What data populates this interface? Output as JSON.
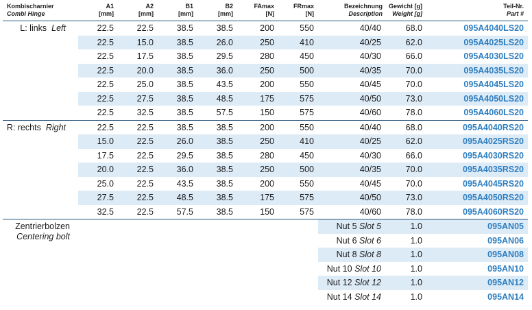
{
  "header": {
    "group_de": "Kombischarnier",
    "group_en": "Combi Hinge",
    "a1": "A1",
    "a1_unit": "[mm]",
    "a2": "A2",
    "a2_unit": "[mm]",
    "b1": "B1",
    "b1_unit": "[mm]",
    "b2": "B2",
    "b2_unit": "[mm]",
    "famax": "FAmax",
    "famax_unit": "[N]",
    "frmax": "FRmax",
    "frmax_unit": "[N]",
    "desc_de": "Bezeichnung",
    "desc_en": "Description",
    "weight_de": "Gewicht [g]",
    "weight_en": "Weight [g]",
    "part_de": "Teil-Nr.",
    "part_en": "Part #"
  },
  "groups": {
    "left_de": "L: links",
    "left_en": "Left",
    "right_de": "R: rechts",
    "right_en": "Right",
    "bolt_de": "Zentrierbolzen",
    "bolt_en": "Centering bolt"
  },
  "left_rows": [
    {
      "a1": "22.5",
      "a2": "22.5",
      "b1": "38.5",
      "b2": "38.5",
      "fa": "200",
      "fr": "550",
      "desc": "40/40",
      "w": "68.0",
      "part": "095A4040LS20"
    },
    {
      "a1": "22.5",
      "a2": "15.0",
      "b1": "38.5",
      "b2": "26.0",
      "fa": "250",
      "fr": "410",
      "desc": "40/25",
      "w": "62.0",
      "part": "095A4025LS20"
    },
    {
      "a1": "22.5",
      "a2": "17.5",
      "b1": "38.5",
      "b2": "29.5",
      "fa": "280",
      "fr": "450",
      "desc": "40/30",
      "w": "66.0",
      "part": "095A4030LS20"
    },
    {
      "a1": "22.5",
      "a2": "20.0",
      "b1": "38.5",
      "b2": "36.0",
      "fa": "250",
      "fr": "500",
      "desc": "40/35",
      "w": "70.0",
      "part": "095A4035LS20"
    },
    {
      "a1": "22.5",
      "a2": "25.0",
      "b1": "38.5",
      "b2": "43.5",
      "fa": "200",
      "fr": "550",
      "desc": "40/45",
      "w": "70.0",
      "part": "095A4045LS20"
    },
    {
      "a1": "22.5",
      "a2": "27.5",
      "b1": "38.5",
      "b2": "48.5",
      "fa": "175",
      "fr": "575",
      "desc": "40/50",
      "w": "73.0",
      "part": "095A4050LS20"
    },
    {
      "a1": "22.5",
      "a2": "32.5",
      "b1": "38.5",
      "b2": "57.5",
      "fa": "150",
      "fr": "575",
      "desc": "40/60",
      "w": "78.0",
      "part": "095A4060LS20"
    }
  ],
  "right_rows": [
    {
      "a1": "22.5",
      "a2": "22.5",
      "b1": "38.5",
      "b2": "38.5",
      "fa": "200",
      "fr": "550",
      "desc": "40/40",
      "w": "68.0",
      "part": "095A4040RS20"
    },
    {
      "a1": "15.0",
      "a2": "22.5",
      "b1": "26.0",
      "b2": "38.5",
      "fa": "250",
      "fr": "410",
      "desc": "40/25",
      "w": "62.0",
      "part": "095A4025RS20"
    },
    {
      "a1": "17.5",
      "a2": "22.5",
      "b1": "29.5",
      "b2": "38.5",
      "fa": "280",
      "fr": "450",
      "desc": "40/30",
      "w": "66.0",
      "part": "095A4030RS20"
    },
    {
      "a1": "20.0",
      "a2": "22.5",
      "b1": "36.0",
      "b2": "38.5",
      "fa": "250",
      "fr": "500",
      "desc": "40/35",
      "w": "70.0",
      "part": "095A4035RS20"
    },
    {
      "a1": "25.0",
      "a2": "22.5",
      "b1": "43.5",
      "b2": "38.5",
      "fa": "200",
      "fr": "550",
      "desc": "40/45",
      "w": "70.0",
      "part": "095A4045RS20"
    },
    {
      "a1": "27.5",
      "a2": "22.5",
      "b1": "48.5",
      "b2": "38.5",
      "fa": "175",
      "fr": "575",
      "desc": "40/50",
      "w": "73.0",
      "part": "095A4050RS20"
    },
    {
      "a1": "32.5",
      "a2": "22.5",
      "b1": "57.5",
      "b2": "38.5",
      "fa": "150",
      "fr": "575",
      "desc": "40/60",
      "w": "78.0",
      "part": "095A4060RS20"
    }
  ],
  "bolt_rows": [
    {
      "de": "Nut 5",
      "en": "Slot 5",
      "w": "1.0",
      "part": "095AN05"
    },
    {
      "de": "Nut 6",
      "en": "Slot 6",
      "w": "1.0",
      "part": "095AN06"
    },
    {
      "de": "Nut 8",
      "en": "Slot 8",
      "w": "1.0",
      "part": "095AN08"
    },
    {
      "de": "Nut 10",
      "en": "Slot 10",
      "w": "1.0",
      "part": "095AN10"
    },
    {
      "de": "Nut 12",
      "en": "Slot 12",
      "w": "1.0",
      "part": "095AN12"
    },
    {
      "de": "Nut 14",
      "en": "Slot 14",
      "w": "1.0",
      "part": "095AN14"
    }
  ]
}
